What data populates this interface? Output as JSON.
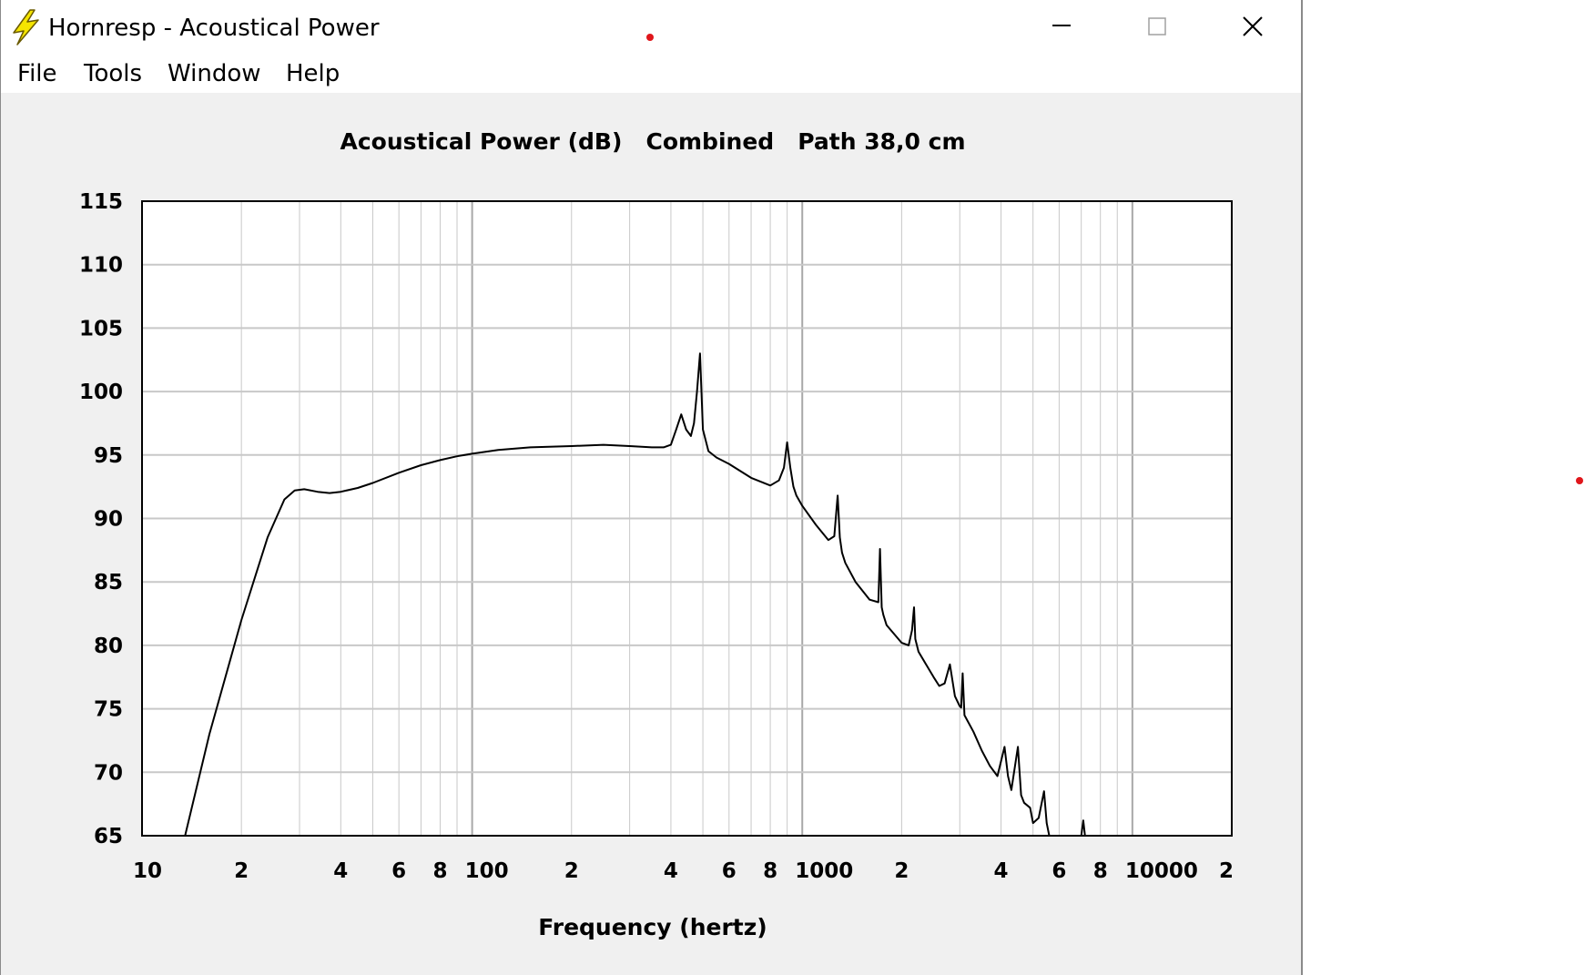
{
  "window": {
    "title": "Hornresp - Acoustical Power",
    "icon": "lightning-icon",
    "controls": {
      "minimize": "minimize-icon",
      "maximize": "maximize-icon",
      "close": "close-icon"
    }
  },
  "menu": [
    "File",
    "Tools",
    "Window",
    "Help"
  ],
  "colors": {
    "plot_bg": "#ffffff",
    "client_bg": "#f0f0f0",
    "grid": "#c8c8c8",
    "curve": "#000000",
    "marker": "#e0161b",
    "icon_yellow": "#f5e500"
  },
  "chart_data": {
    "type": "line",
    "title": "Acoustical Power (dB)   Combined   Path 38,0 cm",
    "xlabel": "Frequency (hertz)",
    "ylabel": "",
    "x_scale": "log",
    "xlim": [
      10,
      20000
    ],
    "ylim": [
      65,
      115
    ],
    "yticks": [
      115,
      110,
      105,
      100,
      95,
      90,
      85,
      80,
      75,
      70,
      65
    ],
    "xticks": [
      {
        "value": 10,
        "label": "10"
      },
      {
        "value": 20,
        "label": "2"
      },
      {
        "value": 40,
        "label": "4"
      },
      {
        "value": 60,
        "label": "6"
      },
      {
        "value": 80,
        "label": "8"
      },
      {
        "value": 100,
        "label": "100"
      },
      {
        "value": 200,
        "label": "2"
      },
      {
        "value": 400,
        "label": "4"
      },
      {
        "value": 600,
        "label": "6"
      },
      {
        "value": 800,
        "label": "8"
      },
      {
        "value": 1000,
        "label": "1000"
      },
      {
        "value": 2000,
        "label": "2"
      },
      {
        "value": 4000,
        "label": "4"
      },
      {
        "value": 6000,
        "label": "6"
      },
      {
        "value": 8000,
        "label": "8"
      },
      {
        "value": 10000,
        "label": "10000"
      },
      {
        "value": 20000,
        "label": "2"
      }
    ],
    "grid": true,
    "series": [
      {
        "name": "",
        "x": [
          13.5,
          16,
          20,
          24,
          27,
          29,
          31,
          34,
          37,
          40,
          45,
          50,
          60,
          70,
          80,
          90,
          100,
          120,
          150,
          200,
          250,
          300,
          350,
          380,
          400,
          415,
          430,
          445,
          460,
          470,
          480,
          490,
          500,
          520,
          550,
          600,
          700,
          800,
          850,
          880,
          900,
          920,
          940,
          960,
          1000,
          1100,
          1200,
          1250,
          1280,
          1300,
          1320,
          1350,
          1450,
          1600,
          1700,
          1720,
          1740,
          1760,
          1800,
          2000,
          2100,
          2150,
          2180,
          2200,
          2250,
          2500,
          2600,
          2700,
          2800,
          2900,
          3000,
          3030,
          3060,
          3100,
          3300,
          3500,
          3700,
          3900,
          4100,
          4200,
          4300,
          4500,
          4600,
          4700,
          4900,
          5000,
          5200,
          5400,
          5500,
          5600,
          5700,
          5800,
          6000,
          6500,
          7000,
          7100,
          7200,
          7300
        ],
        "y": [
          65,
          73,
          82,
          88.5,
          91.5,
          92.2,
          92.3,
          92.1,
          92.0,
          92.1,
          92.4,
          92.8,
          93.6,
          94.2,
          94.6,
          94.9,
          95.1,
          95.4,
          95.6,
          95.7,
          95.8,
          95.7,
          95.6,
          95.6,
          95.8,
          97.0,
          98.2,
          97.0,
          96.5,
          97.5,
          100.0,
          103.0,
          97.0,
          95.3,
          94.8,
          94.3,
          93.2,
          92.6,
          93.0,
          94.0,
          96.0,
          94.0,
          92.5,
          91.8,
          91.0,
          89.5,
          88.3,
          88.6,
          91.8,
          88.5,
          87.3,
          86.5,
          85.0,
          83.6,
          83.4,
          87.6,
          83.0,
          82.4,
          81.6,
          80.2,
          80.0,
          81.2,
          83.0,
          80.5,
          79.5,
          77.5,
          76.8,
          77.0,
          78.5,
          76.0,
          75.2,
          75.1,
          77.8,
          74.5,
          73.2,
          71.7,
          70.5,
          69.7,
          72.0,
          69.7,
          68.6,
          72.0,
          68.2,
          67.6,
          67.2,
          66.0,
          66.4,
          68.5,
          66.0,
          65.0,
          64.5,
          64.2,
          64.0,
          64.5,
          65.0,
          66.2,
          64.8,
          64.0
        ]
      }
    ]
  }
}
